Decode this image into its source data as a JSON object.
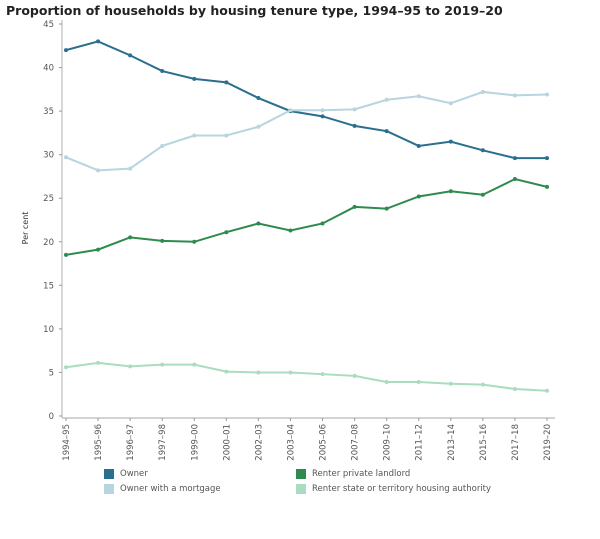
{
  "chart_data": {
    "type": "line",
    "title": "Proportion of households by housing tenure type, 1994–95 to 2019–20",
    "ylabel": "Per cent",
    "xlabel": "",
    "ylim": [
      0,
      45
    ],
    "yticks": [
      0,
      5,
      10,
      15,
      20,
      25,
      30,
      35,
      40,
      45
    ],
    "grid": false,
    "legend_placement": "bottom",
    "categories": [
      "1994–95",
      "1995–96",
      "1996–97",
      "1997–98",
      "1999–00",
      "2000–01",
      "2002–03",
      "2003–04",
      "2005–06",
      "2007–08",
      "2009–10",
      "2011–12",
      "2013–14",
      "2015–16",
      "2017–18",
      "2019–20"
    ],
    "series": [
      {
        "name": "Owner",
        "color": "#2b6f8e",
        "values": [
          42,
          43,
          41.4,
          39.6,
          38.7,
          38.3,
          36.5,
          35,
          34.4,
          33.3,
          32.7,
          31,
          31.5,
          30.5,
          29.6,
          29.6
        ]
      },
      {
        "name": "Owner with a mortgage",
        "color": "#b7d5df",
        "values": [
          29.7,
          28.2,
          28.4,
          31,
          32.2,
          32.2,
          33.2,
          35.1,
          35.1,
          35.2,
          36.3,
          36.7,
          35.9,
          37.2,
          36.8,
          36.9
        ]
      },
      {
        "name": "Renter private landlord",
        "color": "#2f8a4f",
        "values": [
          18.5,
          19.1,
          20.5,
          20.1,
          20,
          21.1,
          22.1,
          21.3,
          22.1,
          24,
          23.8,
          25.2,
          25.8,
          25.4,
          27.2,
          26.3
        ]
      },
      {
        "name": "Renter state or territory housing authority",
        "color": "#a9dcc0",
        "values": [
          5.6,
          6.1,
          5.7,
          5.9,
          5.9,
          5.1,
          5,
          5,
          4.8,
          4.6,
          3.9,
          3.9,
          3.7,
          3.6,
          3.1,
          2.9
        ]
      }
    ]
  }
}
